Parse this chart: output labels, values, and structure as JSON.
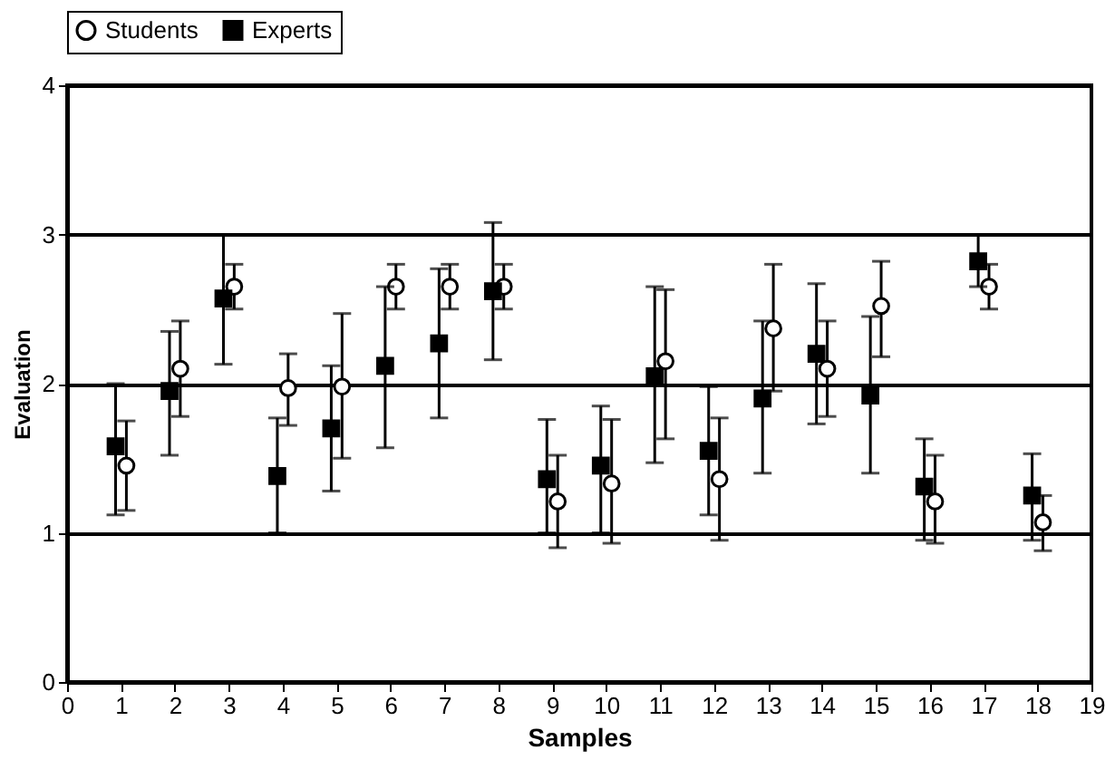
{
  "chart_data": {
    "type": "scatter",
    "xlabel": "Samples",
    "ylabel": "Evaluation",
    "series": [
      {
        "name": "Students",
        "color": "#000000",
        "marker": "circle",
        "x": [
          1.1,
          2.1,
          3.1,
          4.1,
          5.1,
          6.1,
          7.1,
          8.1,
          9.1,
          10.1,
          11.1,
          12.1,
          13.1,
          14.1,
          15.1,
          16.1,
          17.1,
          18.1
        ],
        "values": [
          1.45,
          2.1,
          2.65,
          1.97,
          1.98,
          2.65,
          2.65,
          2.65,
          1.21,
          1.33,
          2.15,
          1.36,
          2.37,
          2.1,
          2.52,
          1.21,
          2.65,
          1.07
        ],
        "errors": [
          [
            1.15,
            1.75
          ],
          [
            1.78,
            2.42
          ],
          [
            2.5,
            2.8
          ],
          [
            1.72,
            2.2
          ],
          [
            1.5,
            2.47
          ],
          [
            2.5,
            2.8
          ],
          [
            2.5,
            2.8
          ],
          [
            2.5,
            2.8
          ],
          [
            0.9,
            1.52
          ],
          [
            0.93,
            1.76
          ],
          [
            1.63,
            2.63
          ],
          [
            0.95,
            1.77
          ],
          [
            1.95,
            2.8
          ],
          [
            1.78,
            2.42
          ],
          [
            2.18,
            2.82
          ],
          [
            0.93,
            1.52
          ],
          [
            2.5,
            2.8
          ],
          [
            0.88,
            1.25
          ]
        ]
      },
      {
        "name": "Experts",
        "color": "#000000",
        "marker": "square",
        "x": [
          0.9,
          1.9,
          2.9,
          3.9,
          4.9,
          5.9,
          6.9,
          7.9,
          8.9,
          9.9,
          10.9,
          11.9,
          12.9,
          13.9,
          14.9,
          15.9,
          16.9,
          17.9
        ],
        "values": [
          1.58,
          1.95,
          2.57,
          1.38,
          1.7,
          2.12,
          2.27,
          2.62,
          1.36,
          1.45,
          2.05,
          1.55,
          1.9,
          2.2,
          1.92,
          1.31,
          2.82,
          1.25
        ],
        "errors": [
          [
            1.12,
            2.0
          ],
          [
            1.52,
            2.35
          ],
          [
            2.13,
            3.0
          ],
          [
            1.0,
            1.77
          ],
          [
            1.28,
            2.12
          ],
          [
            1.57,
            2.65
          ],
          [
            1.77,
            2.77
          ],
          [
            2.16,
            3.08
          ],
          [
            1.0,
            1.76
          ],
          [
            1.0,
            1.85
          ],
          [
            1.47,
            2.65
          ],
          [
            1.12,
            1.98
          ],
          [
            1.4,
            2.42
          ],
          [
            1.73,
            2.67
          ],
          [
            1.4,
            2.45
          ],
          [
            0.95,
            1.63
          ],
          [
            2.65,
            3.0
          ],
          [
            0.95,
            1.53
          ]
        ]
      }
    ],
    "xlim": [
      0,
      19
    ],
    "xticks": [
      0,
      1,
      2,
      3,
      4,
      5,
      6,
      7,
      8,
      9,
      10,
      11,
      12,
      13,
      14,
      15,
      16,
      17,
      18,
      19
    ],
    "ylim": [
      0,
      4
    ],
    "yticks": [
      0,
      1,
      2,
      3,
      4
    ],
    "grid": "y",
    "legend": "top"
  }
}
